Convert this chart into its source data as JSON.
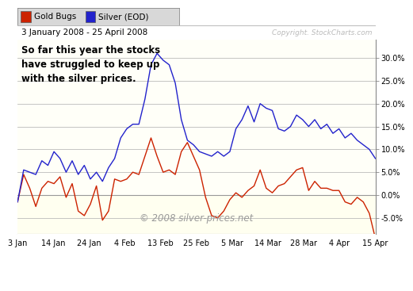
{
  "title_date": "3 January 2008 - 25 April 2008",
  "annotation": "So far this year the stocks\nhave struggled to keep up\nwith the silver prices.",
  "copyright_chart": "Copyright. StockCharts.com",
  "copyright_bottom": "© 2008 silver-prices.net",
  "legend_labels": [
    "Gold Bugs",
    "Silver (EOD)"
  ],
  "legend_colors": [
    "#cc2200",
    "#2222cc"
  ],
  "x_labels": [
    "3 Jan",
    "14 Jan",
    "24 Jan",
    "4 Feb",
    "13 Feb",
    "25 Feb",
    "5 Mar",
    "14 Mar",
    "28 Mar",
    "4 Apr",
    "15 Apr"
  ],
  "ylim": [
    -8.5,
    34.0
  ],
  "yticks": [
    -5.0,
    0.0,
    5.0,
    10.0,
    15.0,
    20.0,
    25.0,
    30.0
  ],
  "background_color": "#ffffff",
  "plot_bg_color": "#fffff8",
  "below_zero_color": "#fffff0",
  "header_bg": "#d8d8d8",
  "border_color": "#888888",
  "red_line_color": "#cc2200",
  "blue_line_color": "#2222cc",
  "red_data": [
    -1.5,
    4.5,
    1.5,
    -2.5,
    1.5,
    3.0,
    2.5,
    4.0,
    -0.5,
    2.5,
    -3.5,
    -4.5,
    -2.0,
    2.0,
    -5.5,
    -3.5,
    3.5,
    3.0,
    3.5,
    5.0,
    4.5,
    8.5,
    12.5,
    8.5,
    5.0,
    5.5,
    4.5,
    9.5,
    11.5,
    8.5,
    5.5,
    -0.5,
    -4.5,
    -5.0,
    -3.5,
    -1.0,
    0.5,
    -0.5,
    1.0,
    2.0,
    5.5,
    1.5,
    0.5,
    2.0,
    2.5,
    4.0,
    5.5,
    6.0,
    1.0,
    3.0,
    1.5,
    1.5,
    1.0,
    1.0,
    -1.5,
    -2.0,
    -0.5,
    -1.5,
    -4.0,
    -9.5
  ],
  "blue_data": [
    -1.5,
    5.5,
    5.0,
    4.5,
    7.5,
    6.5,
    9.5,
    8.0,
    5.0,
    7.5,
    4.5,
    6.5,
    3.5,
    5.0,
    3.0,
    6.0,
    8.0,
    12.5,
    14.5,
    15.5,
    15.5,
    21.0,
    28.5,
    31.0,
    29.5,
    28.5,
    24.5,
    16.5,
    12.0,
    11.0,
    9.5,
    9.0,
    8.5,
    9.5,
    8.5,
    9.5,
    14.5,
    16.5,
    19.5,
    16.0,
    20.0,
    19.0,
    18.5,
    14.5,
    14.0,
    15.0,
    17.5,
    16.5,
    15.0,
    16.5,
    14.5,
    15.5,
    13.5,
    14.5,
    12.5,
    13.5,
    12.0,
    11.0,
    10.0,
    8.0
  ]
}
